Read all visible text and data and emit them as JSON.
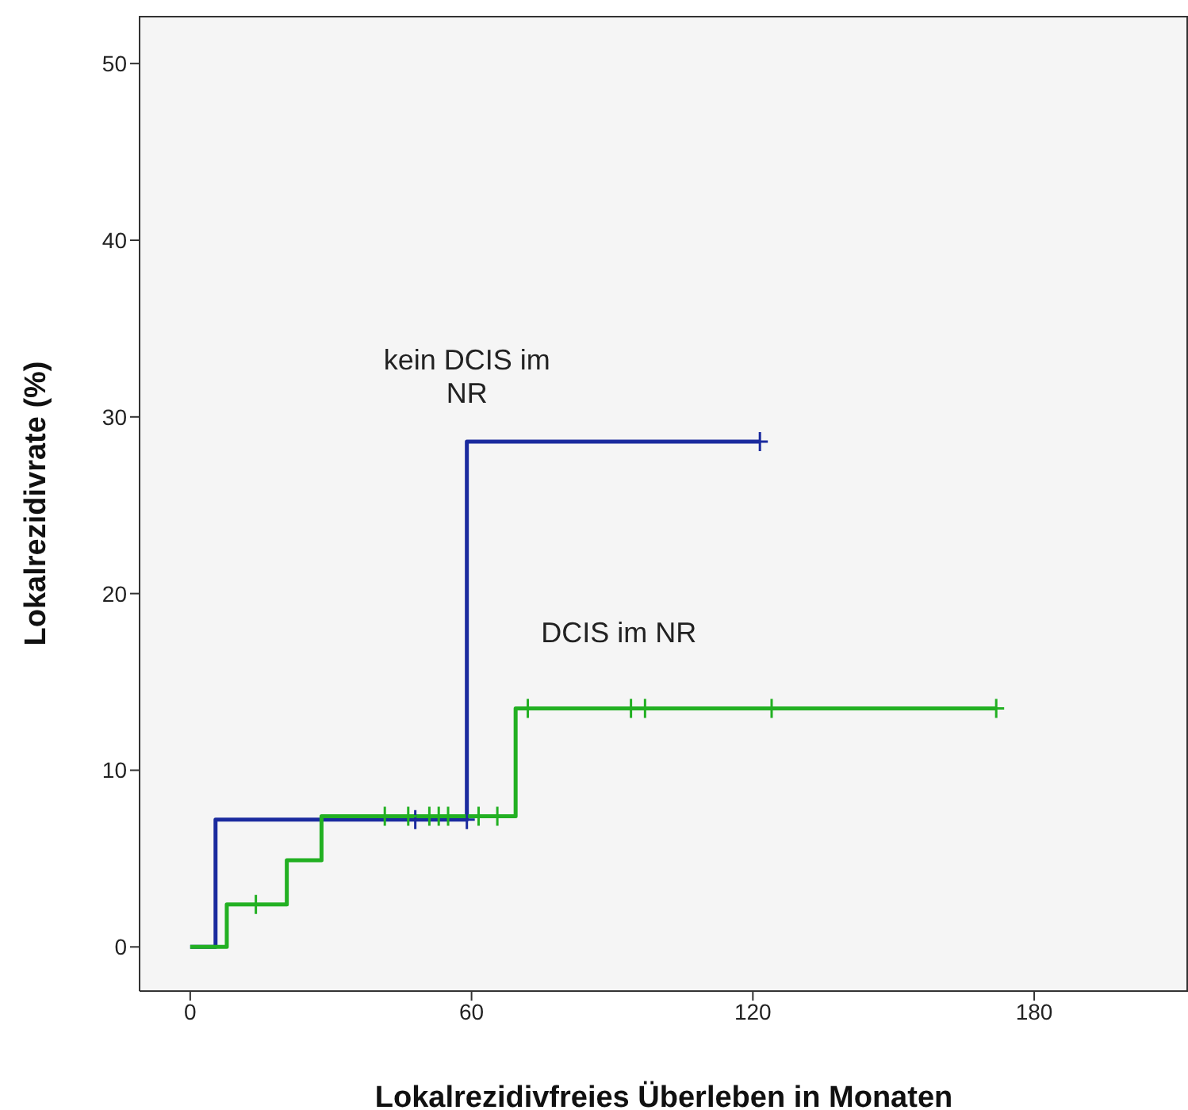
{
  "chart_data": {
    "type": "step",
    "xlabel": "Lokalrezidivfreies Überleben in Monaten",
    "ylabel": "Lokalrezidivrate (%)",
    "xlim": [
      -10.8,
      212.8
    ],
    "ylim": [
      -2.5,
      52.7
    ],
    "xticks": [
      0,
      60,
      120,
      180
    ],
    "yticks": [
      0,
      10,
      20,
      30,
      40,
      50
    ],
    "grid": false,
    "series": [
      {
        "name": "kein DCIS im NR",
        "color": "#1a2a9e",
        "x": [
          0,
          5.4,
          59,
          121.5
        ],
        "values": [
          0,
          7.2,
          28.6,
          28.6
        ],
        "marker": "none"
      },
      {
        "name": "DCIS im NR",
        "color": "#22b022",
        "x": [
          0,
          7.8,
          20.6,
          28,
          69.4,
          171.9
        ],
        "values": [
          0,
          2.4,
          4.9,
          7.4,
          13.5,
          13.5
        ],
        "marker": "none"
      },
      {
        "type": "scatter",
        "color": "#1a2a9e",
        "marker": "cross",
        "x": [
          48,
          59,
          121.5
        ],
        "values": [
          7.2,
          7.2,
          28.6
        ]
      },
      {
        "type": "scatter",
        "color": "#22b022",
        "marker": "cross",
        "x": [
          14,
          41.5,
          46.5,
          51,
          53,
          55,
          61.5,
          65.5,
          72,
          94,
          97,
          124,
          171.9
        ],
        "values": [
          2.4,
          7.4,
          7.4,
          7.4,
          7.4,
          7.4,
          7.4,
          7.4,
          13.5,
          13.5,
          13.5,
          13.5,
          13.5
        ]
      }
    ]
  }
}
